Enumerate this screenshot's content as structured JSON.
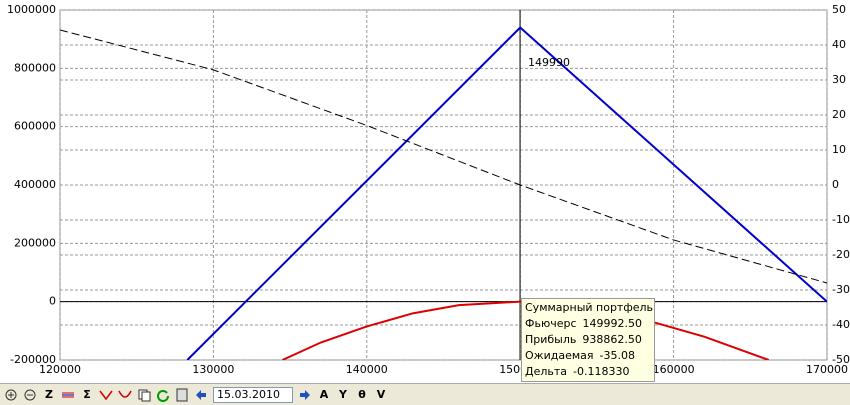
{
  "chart_data": {
    "type": "line",
    "xlim": [
      120000,
      170000
    ],
    "xticks": [
      120000,
      130000,
      140000,
      150000,
      160000,
      170000
    ],
    "ylim": [
      -200000,
      1000000
    ],
    "yticks": [
      -200000,
      0,
      200000,
      400000,
      600000,
      800000,
      1000000
    ],
    "y2lim": [
      -50,
      50
    ],
    "y2ticks": [
      -50,
      -40,
      -30,
      -20,
      -10,
      0,
      10,
      20,
      30,
      40,
      50
    ],
    "grid": true,
    "crosshair": {
      "x": 149990
    },
    "series": [
      {
        "color": "#0000cc",
        "dash": false,
        "x": [
          128300,
          150000,
          170000
        ],
        "values": [
          -200000,
          940000,
          0
        ]
      },
      {
        "color": "#dd0000",
        "dash": false,
        "x": [
          134500,
          137000,
          140000,
          143000,
          146000,
          150000,
          154000,
          158000,
          162000,
          166200
        ],
        "values": [
          -200000,
          -140000,
          -85000,
          -40000,
          -12000,
          0,
          -12000,
          -60000,
          -120000,
          -200000
        ]
      },
      {
        "color": "#000000",
        "dash": true,
        "axis": "y2",
        "x": [
          120000,
          130000,
          140000,
          150000,
          160000,
          170000
        ],
        "values": [
          44.3,
          32.9,
          17,
          0,
          -15.7,
          -28
        ]
      }
    ],
    "tooltip": {
      "title": "Суммарный портфель",
      "rows": [
        {
          "label": "Фьючерс",
          "value": "149992.50"
        },
        {
          "label": "Прибыль",
          "value": "938862.50"
        },
        {
          "label": "Ожидаемая",
          "value": "-35.08"
        },
        {
          "label": "Дельта",
          "value": "-0.118330"
        }
      ]
    }
  },
  "toolbar": {
    "buttons": [
      "Z",
      "Σ",
      "A",
      "Y",
      "θ",
      "V"
    ],
    "date": "15.03.2010"
  }
}
